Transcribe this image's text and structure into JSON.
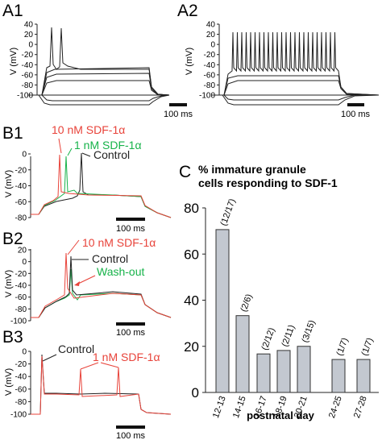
{
  "panels": {
    "A1": {
      "label": "A1",
      "ylabel": "V (mV)",
      "yticks": [
        "40",
        "20",
        "0",
        "-20",
        "-40",
        "-60",
        "-80",
        "-100"
      ],
      "scalebar": "100 ms"
    },
    "A2": {
      "label": "A2",
      "ylabel": "V (mV)",
      "yticks": [
        "40",
        "20",
        "0",
        "-20",
        "-40",
        "-60",
        "-80",
        "-100"
      ],
      "scalebar": "100 ms"
    },
    "B1": {
      "label": "B1",
      "ylabel": "V (mV)",
      "yticks": [
        "0",
        "-20",
        "-40",
        "-60",
        "-80"
      ],
      "scalebar": "100 ms",
      "annotations": {
        "sdf10": "10 nM SDF-1α",
        "sdf1": "1 nM SDF-1α",
        "control": "Control"
      }
    },
    "B2": {
      "label": "B2",
      "ylabel": "V (mV)",
      "yticks": [
        "20",
        "0",
        "-20",
        "-40",
        "-60",
        "-80",
        "-100"
      ],
      "scalebar": "100 ms",
      "annotations": {
        "sdf10": "10 nM SDF-1α",
        "control": "Control",
        "washout": "Wash-out"
      }
    },
    "B3": {
      "label": "B3",
      "ylabel": "V (mV)",
      "yticks": [
        "0",
        "-20",
        "-40",
        "-60",
        "-80",
        "-100"
      ],
      "scalebar": "100 ms",
      "annotations": {
        "control": "Control",
        "sdf1": "1 nM SDF-1α"
      }
    },
    "C": {
      "label": "C"
    }
  },
  "colors": {
    "sdf": "#e8433a",
    "green": "#17b34a",
    "trace": "#222222",
    "bar": "#c3c8d0"
  },
  "chart_data": {
    "type": "bar",
    "title": "% immature granule cells responding to SDF-1",
    "xlabel": "postnatal day",
    "ylabel": "",
    "categories": [
      "12-13",
      "14-15",
      "16-17",
      "18-19",
      "20-21",
      "24-25",
      "27-28"
    ],
    "values": [
      70.6,
      33.3,
      16.7,
      18.2,
      20,
      14.3,
      14.3
    ],
    "bar_labels": [
      "(12/17)",
      "(2/6)",
      "(2/12)",
      "(2/11)",
      "(3/15)",
      "(1/7)",
      "(1/7)"
    ],
    "yticks": [
      "0",
      "20",
      "40",
      "60",
      "80"
    ],
    "ylim": [
      0,
      80
    ]
  }
}
